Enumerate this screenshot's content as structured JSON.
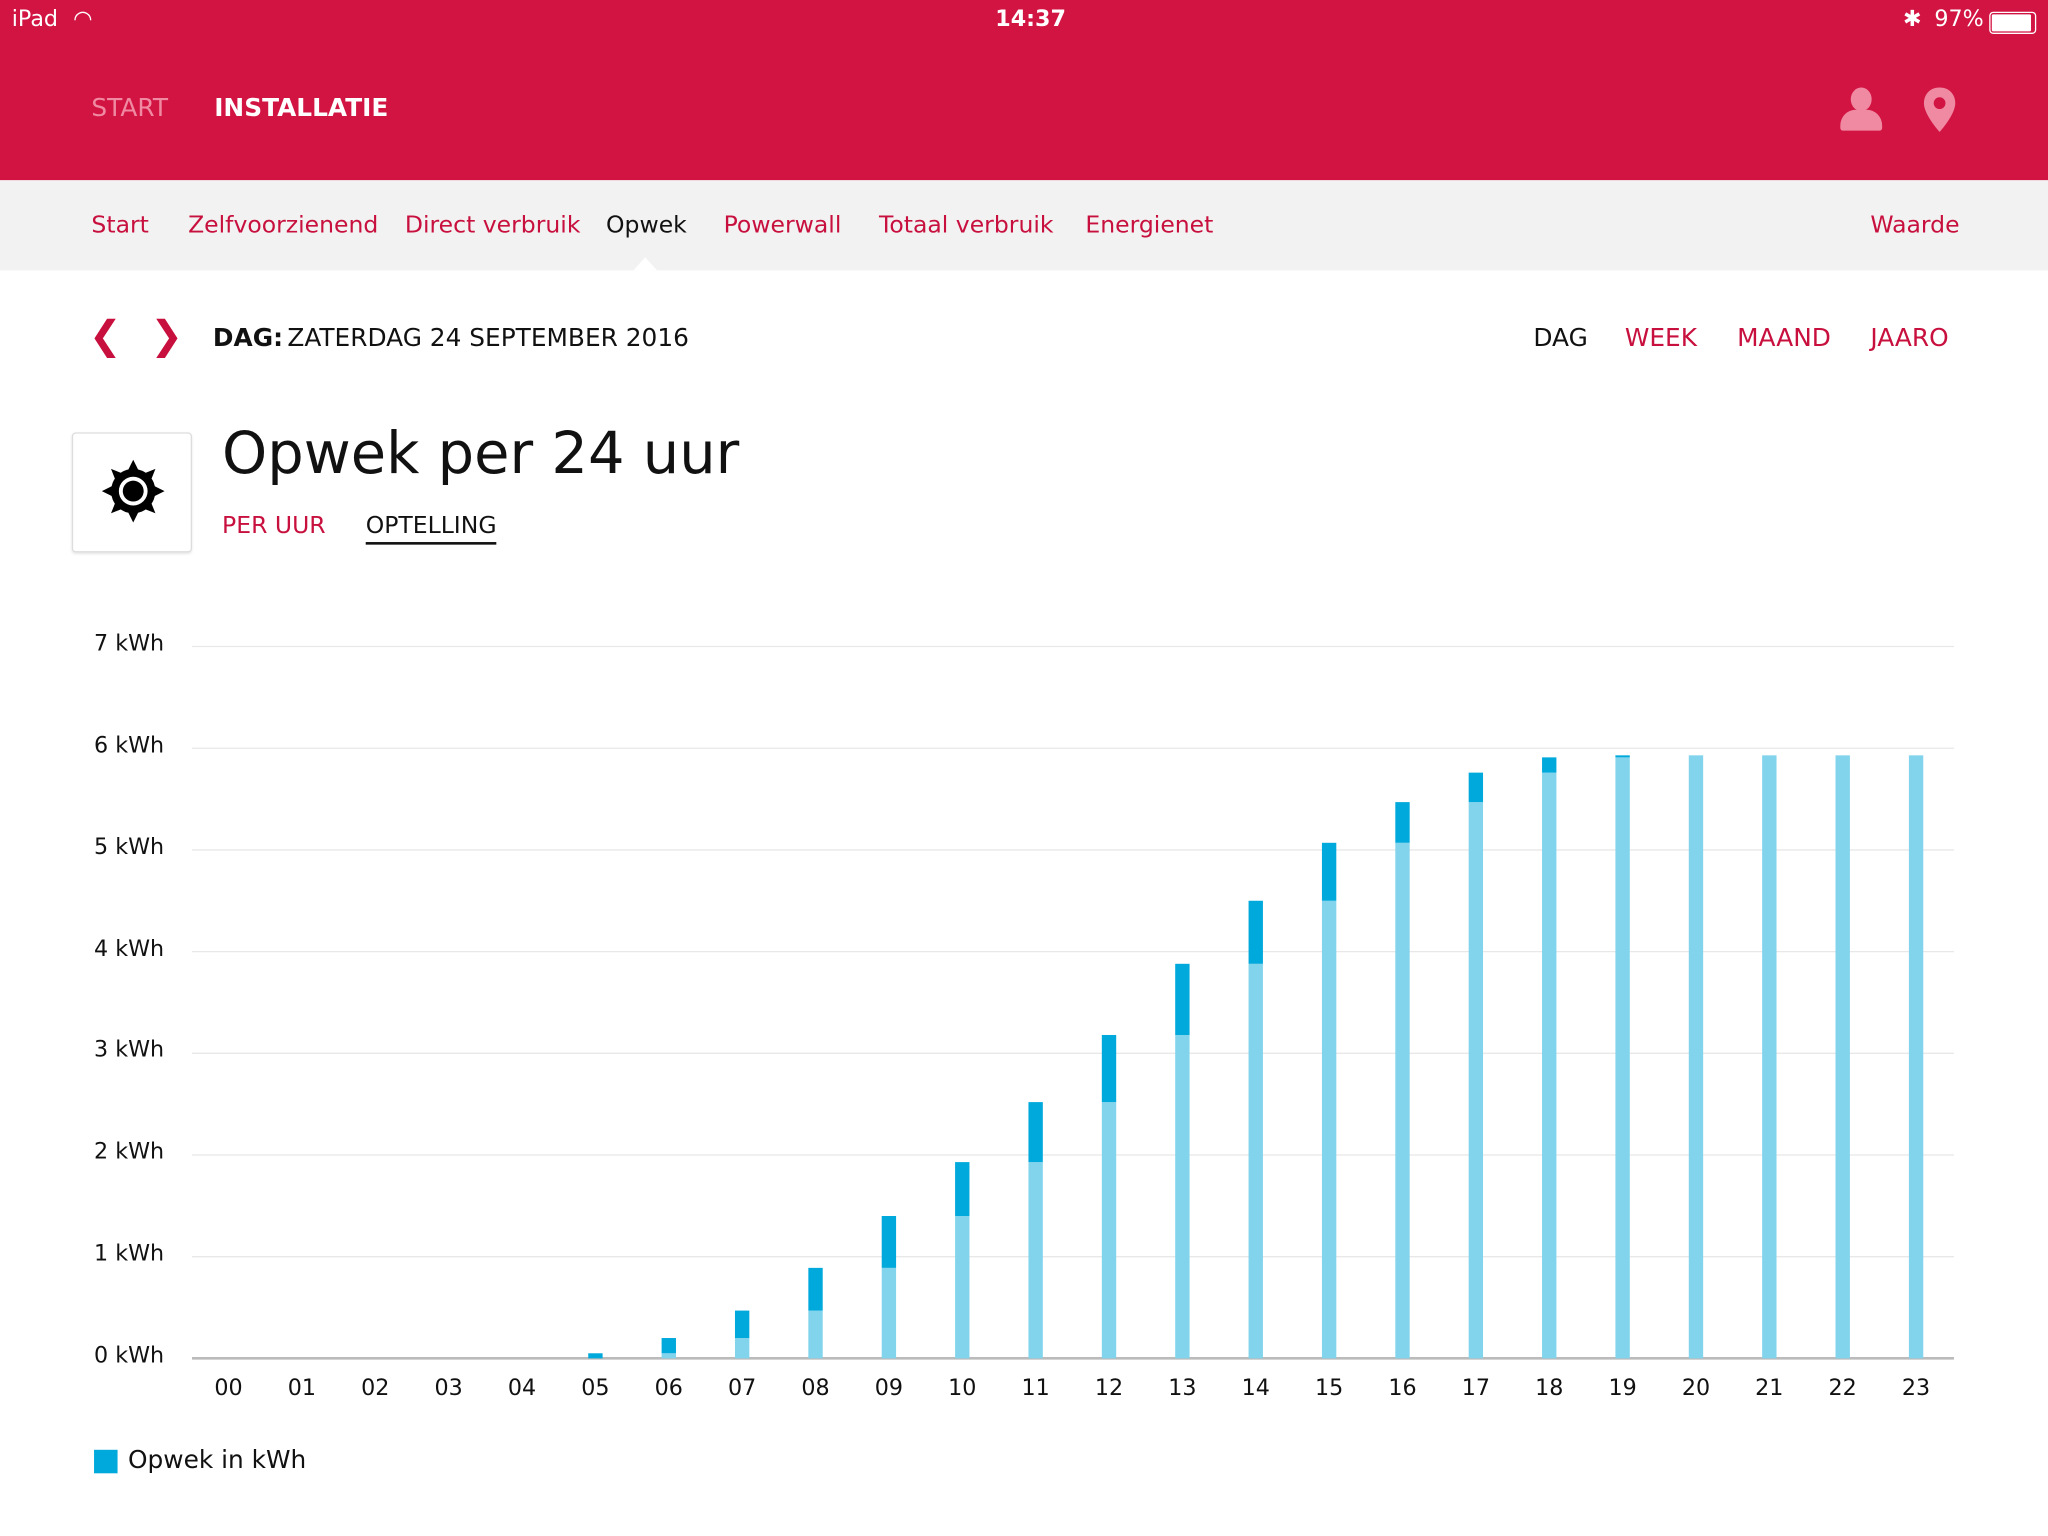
{
  "status_bar": {
    "device": "iPad",
    "time": "14:37",
    "battery": "97%"
  },
  "header": {
    "nav": [
      "START",
      "INSTALLATIE"
    ]
  },
  "subnav": {
    "items": [
      "Start",
      "Zelfvoorzienend",
      "Direct verbruik",
      "Opwek",
      "Powerwall",
      "Totaal verbruik",
      "Energienet"
    ],
    "active": "Opwek",
    "right": "Waarde"
  },
  "period": {
    "label_prefix": "DAG:",
    "label": "ZATERDAG 24 SEPTEMBER 2016",
    "options": [
      "DAG",
      "WEEK",
      "MAAND",
      "JAARO"
    ],
    "active": "DAG"
  },
  "panel": {
    "title": "Opwek per 24 uur",
    "tabs": [
      "PER UUR",
      "OPTELLING"
    ],
    "active_tab": "OPTELLING"
  },
  "colors": {
    "brand": "#d21443",
    "bar_light": "#81d4ec",
    "bar_dark": "#00a9db"
  },
  "chart_data": {
    "type": "bar",
    "title": "Opwek per 24 uur",
    "categories": [
      "00",
      "01",
      "02",
      "03",
      "04",
      "05",
      "06",
      "07",
      "08",
      "09",
      "10",
      "11",
      "12",
      "13",
      "14",
      "15",
      "16",
      "17",
      "18",
      "19",
      "20",
      "21",
      "22",
      "23"
    ],
    "series": [
      {
        "name": "Opwek in kWh",
        "cumulative": true,
        "values": [
          0,
          0,
          0,
          0,
          0,
          0.05,
          0.2,
          0.47,
          0.89,
          1.4,
          1.93,
          2.52,
          3.18,
          3.88,
          4.5,
          5.07,
          5.47,
          5.76,
          5.91,
          5.93,
          5.93,
          5.93,
          5.93,
          5.93
        ]
      }
    ],
    "yticks": [
      "0 kWh",
      "1 kWh",
      "2 kWh",
      "3 kWh",
      "4 kWh",
      "5 kWh",
      "6 kWh",
      "7 kWh"
    ],
    "ylim": [
      0,
      7
    ],
    "grid": true,
    "legend": "Opwek in kWh",
    "legend_position": "bottom-left"
  }
}
